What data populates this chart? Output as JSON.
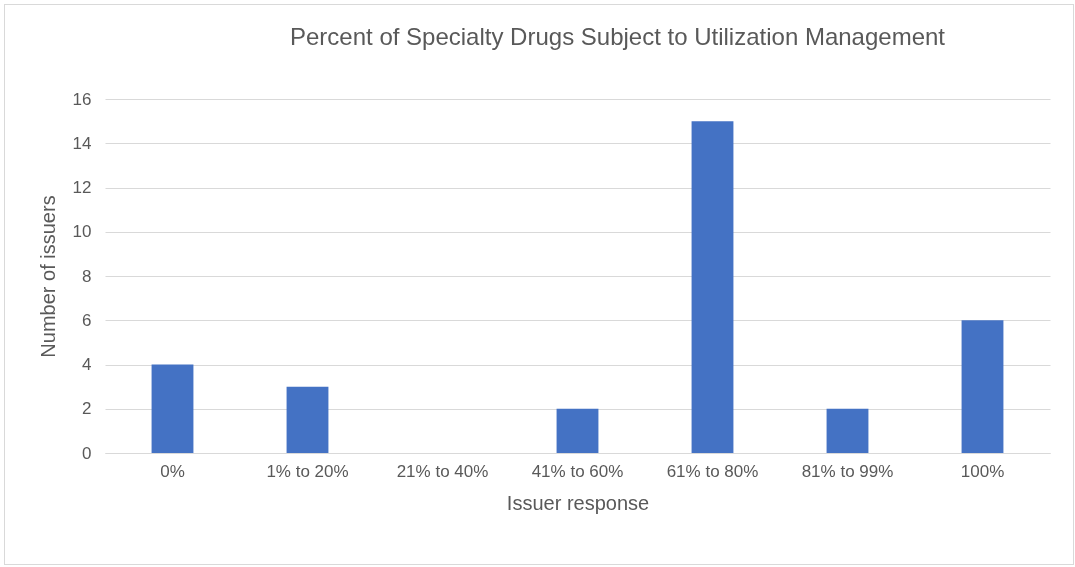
{
  "chart_data": {
    "type": "bar",
    "title": "Percent of Specialty Drugs Subject to Utilization Management",
    "xlabel": "Issuer response",
    "ylabel": "Number of issuers",
    "categories": [
      "0%",
      "1% to 20%",
      "21% to 40%",
      "41% to 60%",
      "61% to 80%",
      "81% to 99%",
      "100%"
    ],
    "values": [
      4,
      3,
      0,
      2,
      15,
      2,
      6
    ],
    "color": "#4472c4",
    "ylim": [
      0,
      16
    ],
    "yticks": [
      0,
      2,
      4,
      6,
      8,
      10,
      12,
      14,
      16
    ],
    "grid": "y"
  }
}
